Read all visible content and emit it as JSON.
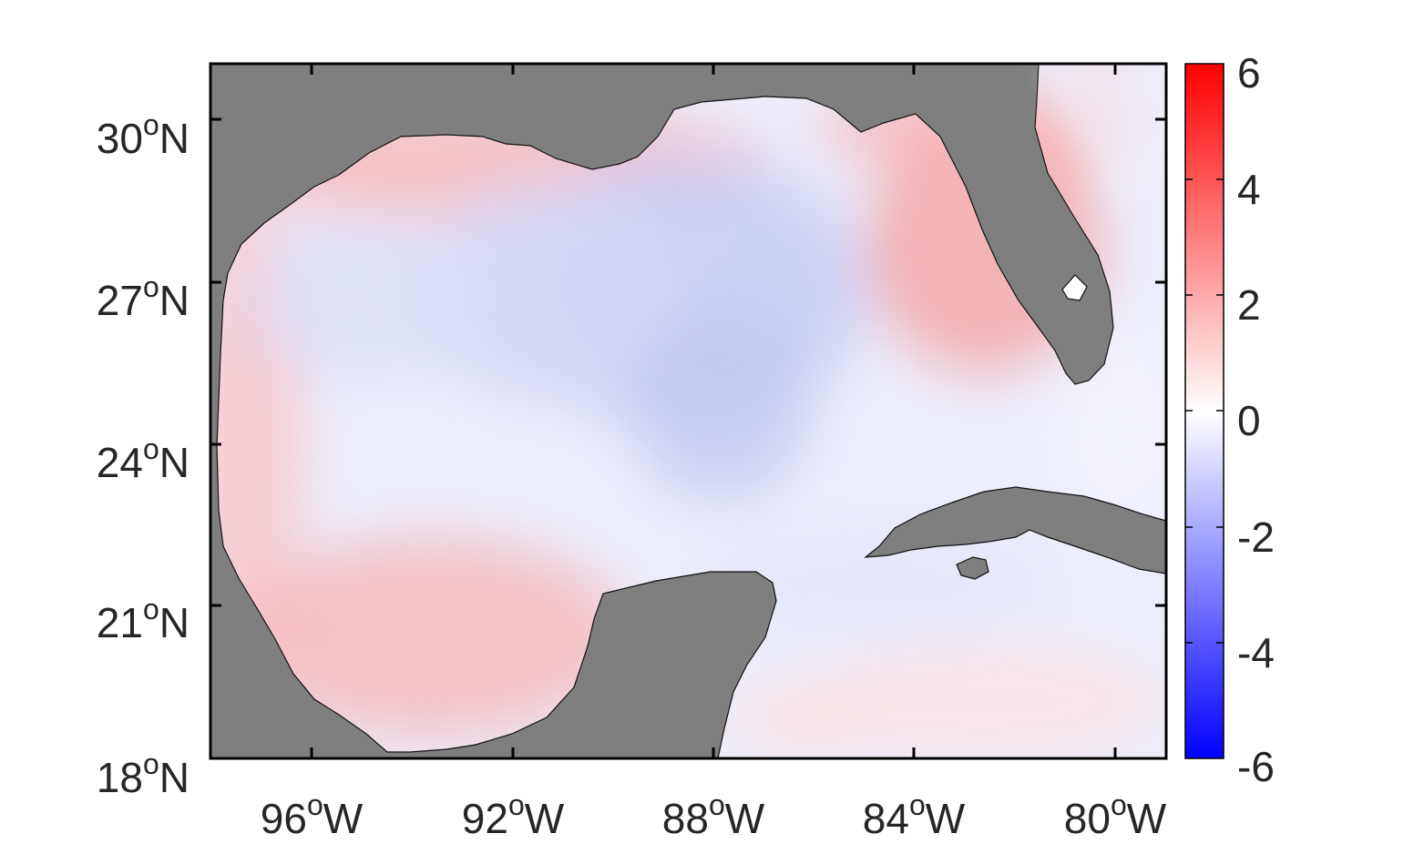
{
  "map": {
    "lat_labels": [
      {
        "value": "30",
        "deg": "o",
        "hemi": "N"
      },
      {
        "value": "27",
        "deg": "o",
        "hemi": "N"
      },
      {
        "value": "24",
        "deg": "o",
        "hemi": "N"
      },
      {
        "value": "21",
        "deg": "o",
        "hemi": "N"
      },
      {
        "value": "18",
        "deg": "o",
        "hemi": "N"
      }
    ],
    "lon_labels": [
      {
        "value": "96",
        "deg": "o",
        "hemi": "W"
      },
      {
        "value": "92",
        "deg": "o",
        "hemi": "W"
      },
      {
        "value": "88",
        "deg": "o",
        "hemi": "W"
      },
      {
        "value": "84",
        "deg": "o",
        "hemi": "W"
      },
      {
        "value": "80",
        "deg": "o",
        "hemi": "W"
      }
    ],
    "land_color": "#7f7f7f",
    "ocean_neutral_color": "#ffffff"
  },
  "colorbar": {
    "labels": [
      "6",
      "4",
      "2",
      "0",
      "-2",
      "-4",
      "-6"
    ],
    "min": -6,
    "max": 6,
    "max_color": "#ff0000",
    "min_color": "#0000ff",
    "mid_color": "#ffffff"
  }
}
